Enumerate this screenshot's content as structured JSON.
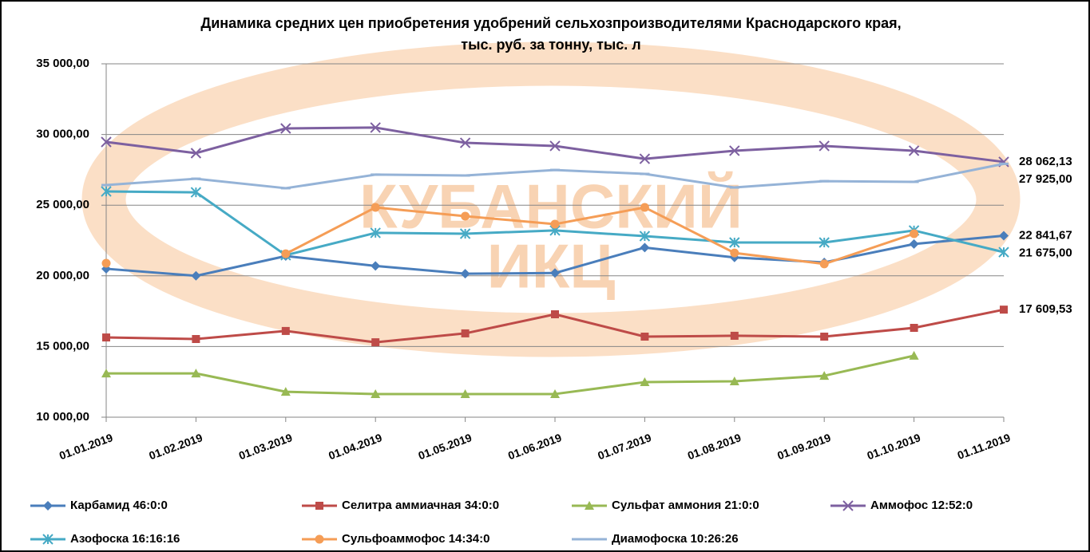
{
  "chart_data": {
    "type": "line",
    "title": [
      "Динамика средних цен приобретения удобрений сельхозпроизводителями Краснодарского края,",
      "тыс. руб. за тонну, тыс. л"
    ],
    "watermark": [
      "КУБАНСКИЙ",
      "ИКЦ"
    ],
    "categories": [
      "01.01.2019",
      "01.02.2019",
      "01.03.2019",
      "01.04.2019",
      "01.05.2019",
      "01.06.2019",
      "01.07.2019",
      "01.08.2019",
      "01.09.2019",
      "01.10.2019",
      "01.11.2019"
    ],
    "ylim": [
      10000,
      35000
    ],
    "yticks": [
      {
        "value": 10000,
        "label": "10 000,00"
      },
      {
        "value": 15000,
        "label": "15 000,00"
      },
      {
        "value": 20000,
        "label": "20 000,00"
      },
      {
        "value": 25000,
        "label": "25 000,00"
      },
      {
        "value": 30000,
        "label": "30 000,00"
      },
      {
        "value": 35000,
        "label": "35 000,00"
      }
    ],
    "grid": true,
    "legend": "bottom",
    "series": [
      {
        "name": "Карбамид 46:0:0",
        "color": "#4a7ebb",
        "marker": "diamond",
        "values": [
          20500,
          20000,
          21400,
          20700,
          20150,
          20200,
          22000,
          21300,
          20950,
          22250,
          22841.67
        ],
        "value_labels": [
          null,
          null,
          null,
          null,
          null,
          null,
          null,
          null,
          null,
          null,
          "22 841,67"
        ]
      },
      {
        "name": "Селитра аммиачная 34:0:0",
        "color": "#be4b48",
        "marker": "square",
        "values": [
          15640,
          15530,
          16100,
          15300,
          15930,
          17280,
          15700,
          15760,
          15700,
          16320,
          17609.53
        ],
        "value_labels": [
          null,
          null,
          null,
          null,
          null,
          null,
          null,
          null,
          null,
          null,
          "17 609,53"
        ]
      },
      {
        "name": "Сульфат аммония 21:0:0",
        "color": "#98b954",
        "marker": "triangle",
        "values": [
          13100,
          13100,
          11800,
          11640,
          11640,
          11640,
          12480,
          12540,
          12930,
          14350,
          null
        ]
      },
      {
        "name": "Аммофос 12:52:0",
        "color": "#7d60a0",
        "marker": "x",
        "values": [
          29470,
          28680,
          30430,
          30490,
          29410,
          29190,
          28280,
          28850,
          29190,
          28850,
          28062.13
        ],
        "value_labels": [
          null,
          null,
          null,
          null,
          null,
          null,
          null,
          null,
          null,
          null,
          "28 062,13"
        ]
      },
      {
        "name": "Азофоска 16:16:16",
        "color": "#46aac5",
        "marker": "star",
        "values": [
          25970,
          25910,
          21460,
          23040,
          22980,
          23210,
          22810,
          22360,
          22360,
          23210,
          21675
        ],
        "value_labels": [
          null,
          null,
          null,
          null,
          null,
          null,
          null,
          null,
          null,
          null,
          "21 675,00"
        ]
      },
      {
        "name": "Сульфоаммофос 14:34:0",
        "color": "#f59d56",
        "marker": "circle",
        "values": [
          20890,
          null,
          21560,
          24840,
          24220,
          23660,
          24840,
          21620,
          20840,
          22980,
          null
        ]
      },
      {
        "name": "Диамофоска 10:26:26",
        "color": "#95b3d7",
        "marker": "dash",
        "values": [
          26420,
          26870,
          26200,
          27160,
          27100,
          27490,
          27210,
          26250,
          26700,
          26650,
          27925
        ],
        "value_labels": [
          null,
          null,
          null,
          null,
          null,
          null,
          null,
          null,
          null,
          null,
          "27 925,00"
        ]
      }
    ]
  }
}
